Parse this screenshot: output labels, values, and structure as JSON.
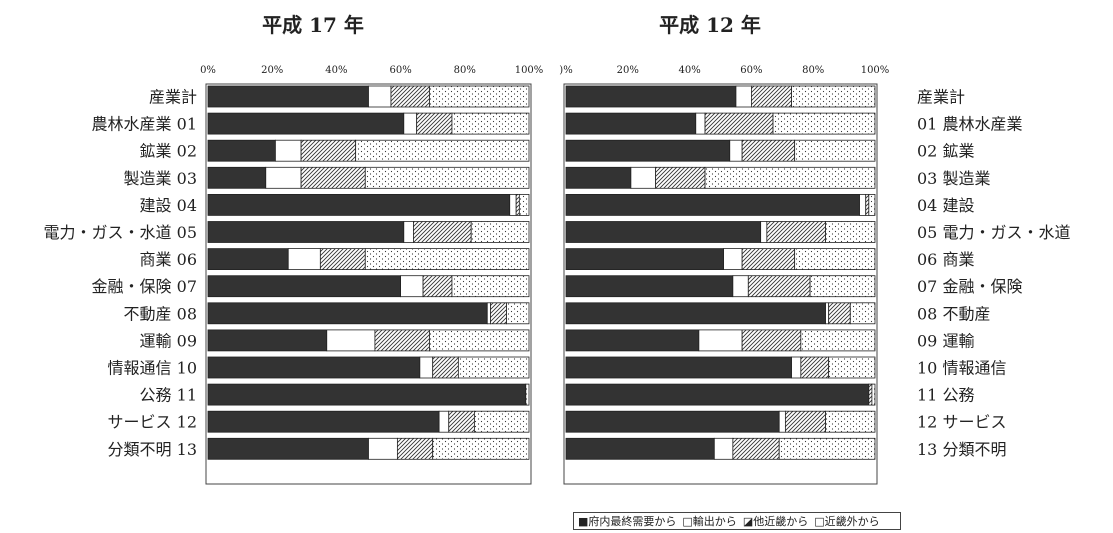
{
  "chart_data": [
    {
      "type": "bar",
      "orientation": "horizontal",
      "stacked": "percent",
      "title": "平成 17 年",
      "xlabel": "",
      "ylabel": "",
      "xlim": [
        0,
        100
      ],
      "xticks": [
        "0%",
        "20%",
        "40%",
        "60%",
        "80%",
        "100%"
      ],
      "categories": [
        "産業計",
        "農林水産業 01",
        "鉱業 02",
        "製造業 03",
        "建設 04",
        "電力・ガス・水道 05",
        "商業 06",
        "金融・保険 07",
        "不動産 08",
        "運輸 09",
        "情報通信 10",
        "公務 11",
        "サービス 12",
        "分類不明 13"
      ],
      "series": [
        {
          "name": "府内最終需要から",
          "values": [
            50,
            61,
            21,
            18,
            94,
            61,
            25,
            60,
            87,
            37,
            66,
            99,
            72,
            50
          ]
        },
        {
          "name": "輸出から",
          "values": [
            7,
            4,
            8,
            11,
            2,
            3,
            10,
            7,
            1,
            15,
            4,
            0,
            3,
            9
          ]
        },
        {
          "name": "他近畿から",
          "values": [
            12,
            11,
            17,
            20,
            1,
            18,
            14,
            9,
            5,
            17,
            8,
            0,
            8,
            11
          ]
        },
        {
          "name": "近畿外から",
          "values": [
            31,
            24,
            54,
            51,
            3,
            18,
            51,
            24,
            7,
            31,
            22,
            1,
            17,
            30
          ]
        }
      ]
    },
    {
      "type": "bar",
      "orientation": "horizontal",
      "stacked": "percent",
      "title": "平成 12 年",
      "xlabel": "",
      "ylabel": "",
      "xlim": [
        0,
        100
      ],
      "xticks": [
        ")%",
        "20%",
        "40%",
        "60%",
        "80%",
        "100%"
      ],
      "categories": [
        "産業計",
        "01 農林水産業",
        "02 鉱業",
        "03 製造業",
        "04 建設",
        "05 電力・ガス・水道",
        "06 商業",
        "07 金融・保険",
        "08 不動産",
        "09 運輸",
        "10 情報通信",
        "11 公務",
        "12 サービス",
        "13 分類不明"
      ],
      "series": [
        {
          "name": "府内最終需要から",
          "values": [
            55,
            42,
            53,
            21,
            95,
            63,
            51,
            54,
            84,
            43,
            73,
            98,
            69,
            48
          ]
        },
        {
          "name": "輸出から",
          "values": [
            5,
            3,
            4,
            8,
            2,
            2,
            6,
            5,
            1,
            14,
            3,
            0,
            2,
            6
          ]
        },
        {
          "name": "他近畿から",
          "values": [
            13,
            22,
            17,
            16,
            1,
            19,
            17,
            20,
            7,
            19,
            9,
            1,
            13,
            15
          ]
        },
        {
          "name": "近畿外から",
          "values": [
            27,
            33,
            26,
            55,
            2,
            16,
            26,
            21,
            8,
            24,
            15,
            1,
            16,
            31
          ]
        }
      ]
    }
  ],
  "legend": [
    {
      "label": "■府内最終需要から",
      "pattern": "solid-dark"
    },
    {
      "label": "□輸出から",
      "pattern": "white"
    },
    {
      "label": "◪他近畿から",
      "pattern": "hatch"
    },
    {
      "label": "□近畿外から",
      "pattern": "dots"
    }
  ],
  "colors": {
    "dark": "#333333",
    "border": "#222222"
  },
  "legend_placement": "bottom"
}
